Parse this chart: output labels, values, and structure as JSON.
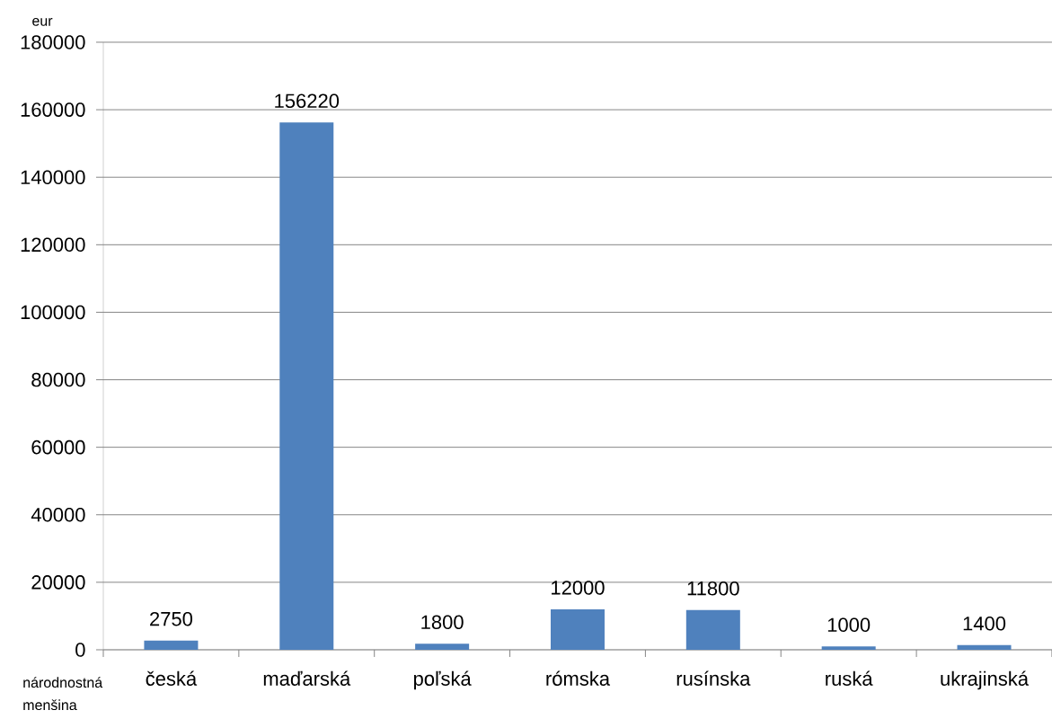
{
  "chart_data": {
    "type": "bar",
    "xlabel": "národnostná menšina",
    "ylabel": "eur",
    "categories": [
      "česká",
      "maďarská",
      "poľská",
      "rómska",
      "rusínska",
      "ruská",
      "ukrajinská"
    ],
    "values": [
      2750,
      156220,
      1800,
      12000,
      11800,
      1000,
      1400
    ],
    "color": "#4f81bd",
    "ylim": [
      0,
      180000
    ],
    "yticks": [
      0,
      20000,
      40000,
      60000,
      80000,
      100000,
      120000,
      140000,
      160000,
      180000
    ],
    "grid": "y",
    "data_labels": true
  }
}
